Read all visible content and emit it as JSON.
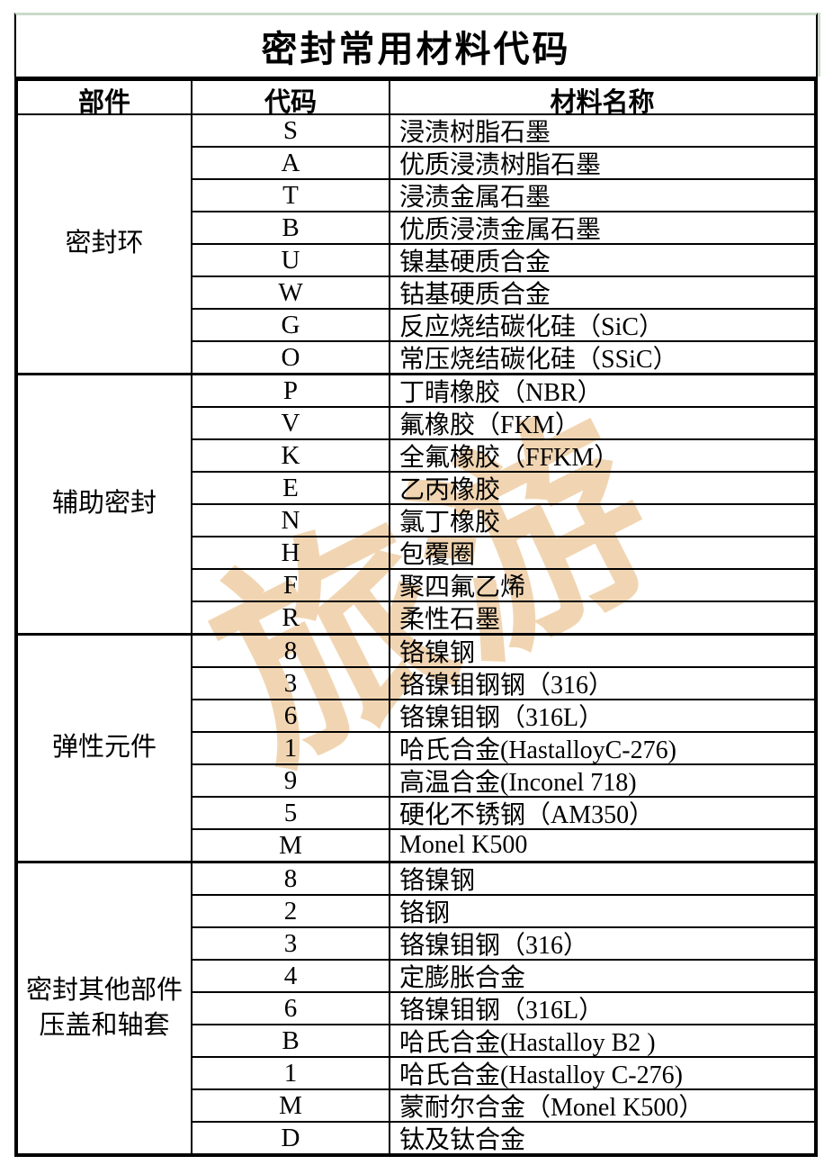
{
  "page": {
    "title_text": "密封常用材料代码"
  },
  "colors": {
    "frame_green": "#cbd9ca",
    "border_black": "#000000",
    "watermark_tan": "#e9bf89",
    "background": "#ffffff"
  },
  "watermark": {
    "text": "旅游",
    "color": "#e9bf89"
  },
  "table": {
    "headers": [
      {
        "key": "part",
        "label": "部件"
      },
      {
        "key": "code",
        "label": "代码"
      },
      {
        "key": "name",
        "label": "材料名称"
      }
    ],
    "sections": [
      {
        "part": "密封环",
        "part_lines": [
          "密封环"
        ],
        "rows": [
          {
            "code": "S",
            "name": "浸渍树脂石墨"
          },
          {
            "code": "A",
            "name": "优质浸渍树脂石墨"
          },
          {
            "code": "T",
            "name": "浸渍金属石墨"
          },
          {
            "code": "B",
            "name": "优质浸渍金属石墨"
          },
          {
            "code": "U",
            "name": "镍基硬质合金"
          },
          {
            "code": "W",
            "name": "钴基硬质合金"
          },
          {
            "code": "G",
            "name": "反应烧结碳化硅（SiC）"
          },
          {
            "code": "O",
            "name": "常压烧结碳化硅（SSiC）"
          }
        ]
      },
      {
        "part": "辅助密封",
        "part_lines": [
          "辅助密封"
        ],
        "rows": [
          {
            "code": "P",
            "name": "丁晴橡胶（NBR）"
          },
          {
            "code": "V",
            "name": "氟橡胶（FKM）"
          },
          {
            "code": "K",
            "name": "全氟橡胶（FFKM）"
          },
          {
            "code": "E",
            "name": "乙丙橡胶"
          },
          {
            "code": "N",
            "name": "氯丁橡胶"
          },
          {
            "code": "H",
            "name": "包覆圈"
          },
          {
            "code": "F",
            "name": "聚四氟乙烯"
          },
          {
            "code": "R",
            "name": "柔性石墨"
          }
        ]
      },
      {
        "part": "弹性元件",
        "part_lines": [
          "弹性元件"
        ],
        "rows": [
          {
            "code": "8",
            "name": "铬镍钢"
          },
          {
            "code": "3",
            "name": "铬镍钼钢钢（316）"
          },
          {
            "code": "6",
            "name": "铬镍钼钢（316L）"
          },
          {
            "code": "1",
            "name": "哈氏合金(HastalloyC-276)"
          },
          {
            "code": "9",
            "name": "高温合金(Inconel 718)"
          },
          {
            "code": "5",
            "name": "硬化不锈钢（AM350）"
          },
          {
            "code": "M",
            "name": "Monel K500"
          }
        ]
      },
      {
        "part": "密封其他部件压盖和轴套",
        "part_lines": [
          "密封其他部件",
          "压盖和轴套"
        ],
        "rows": [
          {
            "code": "8",
            "name": "铬镍钢"
          },
          {
            "code": "2",
            "name": "铬钢"
          },
          {
            "code": "3",
            "name": "铬镍钼钢（316）"
          },
          {
            "code": "4",
            "name": "定膨胀合金"
          },
          {
            "code": "6",
            "name": "铬镍钼钢（316L）"
          },
          {
            "code": "B",
            "name": "哈氏合金(Hastalloy B2 )"
          },
          {
            "code": "1",
            "name": "哈氏合金(Hastalloy C-276)"
          },
          {
            "code": "M",
            "name": "蒙耐尔合金（Monel K500）"
          },
          {
            "code": "D",
            "name": "钛及钛合金"
          }
        ]
      }
    ]
  }
}
